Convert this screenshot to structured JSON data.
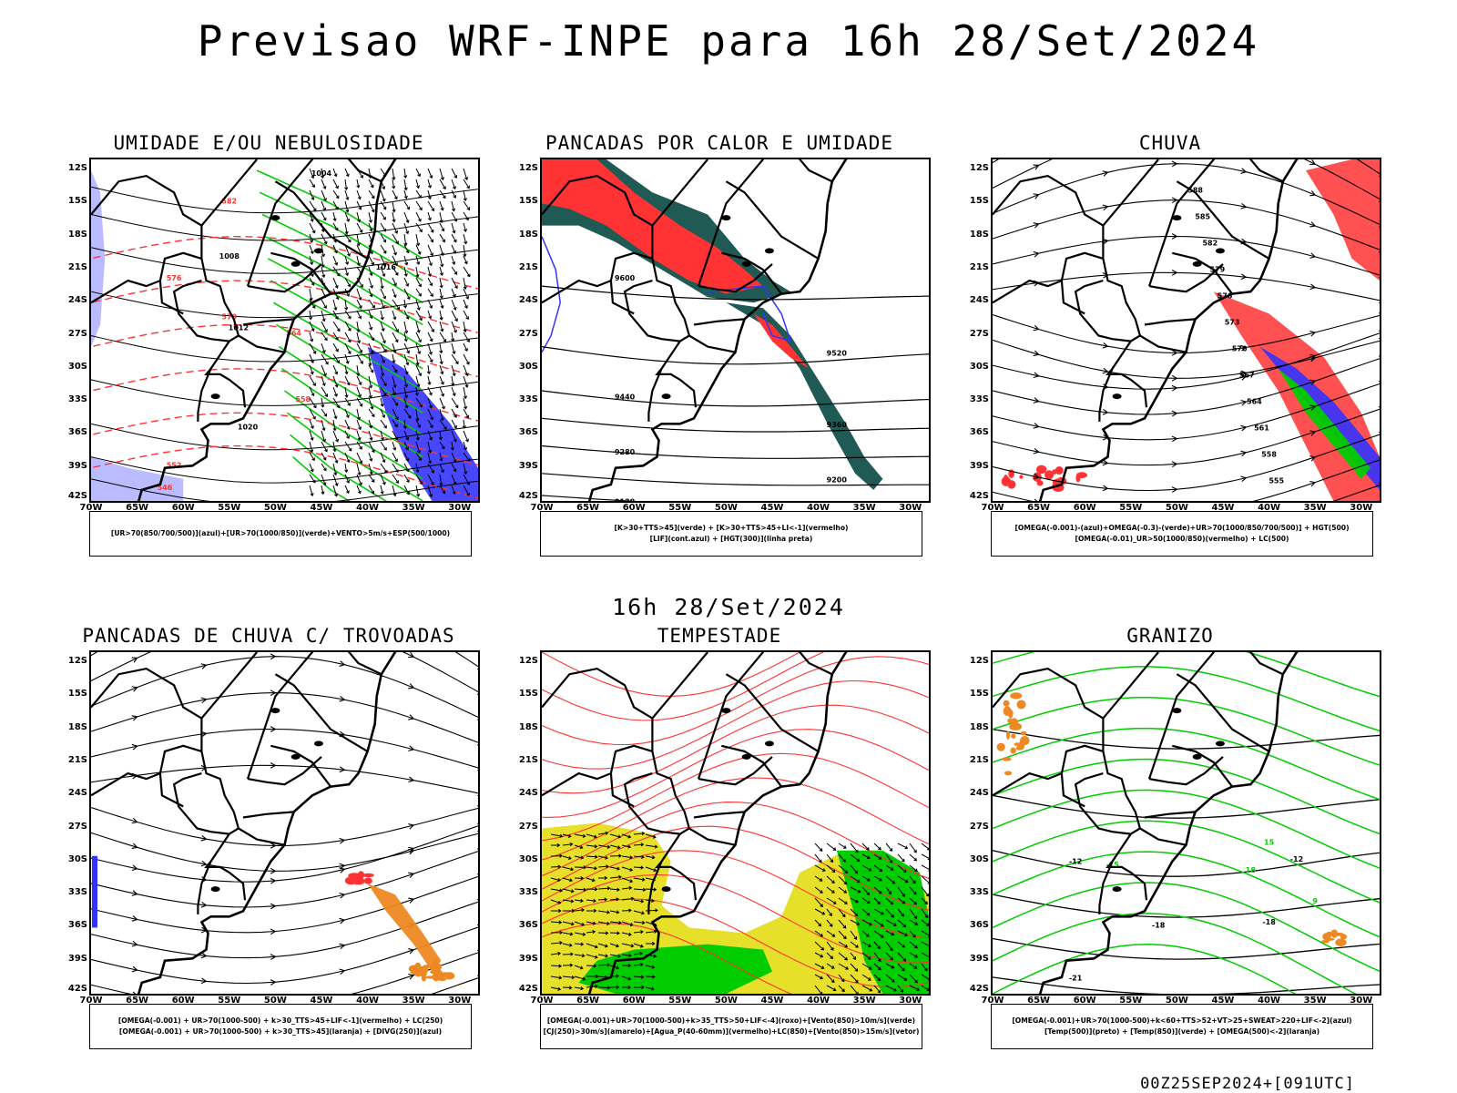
{
  "main_title": "Previsao WRF-INPE  para 16h 28/Set/2024",
  "mid_title": "16h 28/Set/2024",
  "run_label": "00Z25SEP2024+[091UTC]",
  "axes": {
    "lat": [
      "12S",
      "15S",
      "18S",
      "21S",
      "24S",
      "27S",
      "30S",
      "33S",
      "36S",
      "39S",
      "42S"
    ],
    "lon": [
      "70W",
      "65W",
      "60W",
      "55W",
      "50W",
      "45W",
      "40W",
      "35W",
      "30W"
    ]
  },
  "colors": {
    "red": "#ff3333",
    "green": "#00cc00",
    "blue": "#3333ff",
    "lightblue": "#aaaaff",
    "darkteal": "#1f5a55",
    "yellow": "#e6e02a",
    "orange": "#ee8822"
  },
  "panels": [
    {
      "title": "UMIDADE E/OU NEBULOSIDADE",
      "legend": [
        "[UR>70(850/700/500)](azul)+[UR>70(1000/850)](verde)+VENTO>5m/s+ESP(500/1000)"
      ],
      "contour_labels": [
        "1004",
        "1008",
        "1012",
        "1016",
        "1020",
        "582",
        "576",
        "570",
        "564",
        "558",
        "552",
        "546"
      ]
    },
    {
      "title": "PANCADAS POR CALOR E UMIDADE",
      "legend": [
        "[K>30+TTS>45](verde) + [K>30+TTS>45+LI<-1](vermelho)",
        "[LIF](cont.azul) + [HGT(300)](linha preta)"
      ],
      "contour_labels": [
        "9600",
        "9520",
        "9440",
        "9360",
        "9280",
        "9200",
        "9120"
      ]
    },
    {
      "title": "CHUVA",
      "legend": [
        "[OMEGA(-0.001)-(azul)+OMEGA(-0.3)-(verde)+UR>70(1000/850/700/500)] + HGT(500)",
        "[OMEGA(-0.01)_UR>50(1000/850)(vermelho) + LC(500)"
      ],
      "contour_labels": [
        "588",
        "585",
        "582",
        "579",
        "576",
        "573",
        "570",
        "567",
        "564",
        "561",
        "558",
        "555"
      ]
    },
    {
      "title": "PANCADAS DE CHUVA C/ TROVOADAS",
      "legend": [
        "[OMEGA(-0.001) + UR>70(1000-500) + k>30_TTS>45+LIF<-1](vermelho) + LC(250)",
        "[OMEGA(-0.001) + UR>70(1000-500) + k>30_TTS>45](laranja) + [DIVG(250)](azul)"
      ],
      "contour_labels": []
    },
    {
      "title": "TEMPESTADE",
      "legend": [
        "[OMEGA(-0.001)+UR>70(1000-500)+k>35_TTS>50+LIF<-4](roxo)+[Vento(850)>10m/s](verde)",
        "[CJ(250)>30m/s](amarelo)+[Agua_P(40-60mm)](vermelho)+LC(850)+[Vento(850)>15m/s](vetor)"
      ],
      "contour_labels": []
    },
    {
      "title": "GRANIZO",
      "legend": [
        "[OMEGA(-0.001)+UR>70(1000-500)+k<60+TTS>52+VT>25+SWEAT>220+LIF<-2](azul)",
        "[Temp(500)](preto) + [Temp(850)](verde) + [OMEGA(500)<-2](laranja)"
      ],
      "contour_labels": [
        "-12",
        "-15",
        "-18",
        "-21",
        "15",
        "18",
        "9"
      ]
    }
  ]
}
